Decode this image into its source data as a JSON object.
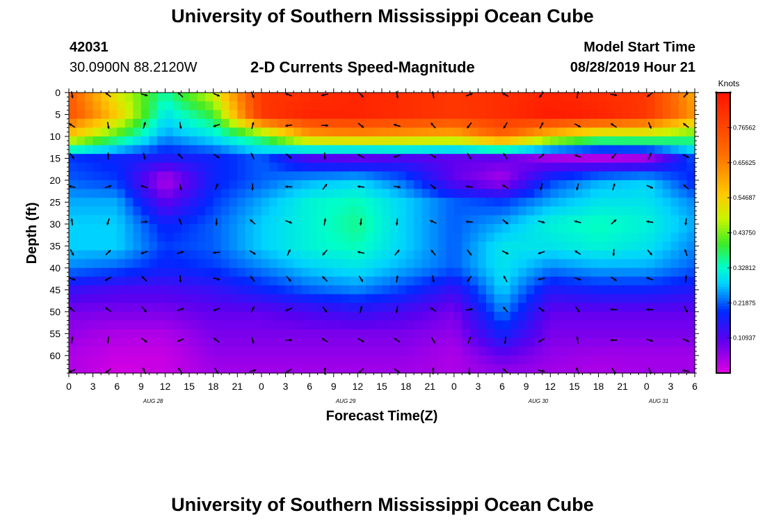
{
  "page": {
    "title": "University of Southern Mississippi Ocean Cube",
    "footer_title": "University of Southern Mississippi Ocean Cube",
    "station_id": "42031",
    "location": "30.0900N 88.2120W",
    "model_start_label": "Model Start Time",
    "model_start_value": "08/28/2019 Hour 21"
  },
  "chart_data": {
    "type": "heatmap",
    "title": "2-D Currents Speed-Magnitude",
    "xlabel": "Forecast Time(Z)",
    "ylabel": "Depth (ft)",
    "colorbar_label": "Knots",
    "colorbar_ticks": [
      "0.76562",
      "0.65625",
      "0.54687",
      "0.43750",
      "0.32812",
      "0.21875",
      "0.10937"
    ],
    "colorbar_range": [
      0,
      0.875
    ],
    "x_ticks": [
      "0",
      "3",
      "6",
      "9",
      "12",
      "15",
      "18",
      "21",
      "0",
      "3",
      "6",
      "9",
      "12",
      "15",
      "18",
      "21",
      "0",
      "3",
      "6",
      "9",
      "12",
      "15",
      "18",
      "21",
      "0",
      "3",
      "6"
    ],
    "x_range_hours": [
      0,
      78
    ],
    "date_labels": [
      {
        "label": "AUG 28",
        "hour": 10.5
      },
      {
        "label": "AUG 29",
        "hour": 34.5
      },
      {
        "label": "AUG 30",
        "hour": 58.5
      },
      {
        "label": "AUG 31",
        "hour": 73.5
      }
    ],
    "y_ticks": [
      0,
      5,
      10,
      15,
      20,
      25,
      30,
      35,
      40,
      45,
      50,
      55,
      60
    ],
    "y_range": [
      0,
      64
    ],
    "y_inverted": true,
    "speed_grid": {
      "hours": [
        0,
        6,
        12,
        18,
        24,
        30,
        36,
        42,
        48,
        54,
        60,
        66,
        72,
        78
      ],
      "depths": [
        0,
        5,
        10,
        15,
        20,
        25,
        30,
        35,
        40,
        45,
        50,
        55,
        60,
        64
      ],
      "values": [
        [
          0.72,
          0.5,
          0.35,
          0.5,
          0.8,
          0.82,
          0.84,
          0.82,
          0.8,
          0.82,
          0.84,
          0.82,
          0.8,
          0.6
        ],
        [
          0.74,
          0.55,
          0.3,
          0.4,
          0.8,
          0.84,
          0.84,
          0.82,
          0.8,
          0.82,
          0.86,
          0.84,
          0.8,
          0.62
        ],
        [
          0.55,
          0.4,
          0.25,
          0.3,
          0.4,
          0.6,
          0.62,
          0.6,
          0.58,
          0.7,
          0.55,
          0.45,
          0.45,
          0.4
        ],
        [
          0.2,
          0.18,
          0.16,
          0.18,
          0.22,
          0.12,
          0.1,
          0.12,
          0.1,
          0.1,
          0.05,
          0.04,
          0.05,
          0.22
        ],
        [
          0.22,
          0.2,
          0.03,
          0.18,
          0.22,
          0.26,
          0.28,
          0.22,
          0.1,
          0.04,
          0.2,
          0.26,
          0.28,
          0.18
        ],
        [
          0.26,
          0.26,
          0.1,
          0.2,
          0.26,
          0.32,
          0.34,
          0.28,
          0.22,
          0.2,
          0.26,
          0.3,
          0.3,
          0.24
        ],
        [
          0.28,
          0.28,
          0.18,
          0.22,
          0.28,
          0.32,
          0.36,
          0.28,
          0.22,
          0.26,
          0.32,
          0.34,
          0.32,
          0.26
        ],
        [
          0.28,
          0.28,
          0.2,
          0.22,
          0.28,
          0.32,
          0.34,
          0.28,
          0.22,
          0.3,
          0.3,
          0.32,
          0.3,
          0.24
        ],
        [
          0.24,
          0.22,
          0.18,
          0.2,
          0.24,
          0.28,
          0.3,
          0.26,
          0.22,
          0.3,
          0.24,
          0.26,
          0.26,
          0.22
        ],
        [
          0.14,
          0.12,
          0.12,
          0.14,
          0.18,
          0.22,
          0.24,
          0.2,
          0.14,
          0.28,
          0.16,
          0.18,
          0.18,
          0.16
        ],
        [
          0.08,
          0.08,
          0.08,
          0.1,
          0.1,
          0.12,
          0.14,
          0.12,
          0.08,
          0.24,
          0.1,
          0.1,
          0.1,
          0.1
        ],
        [
          0.06,
          0.04,
          0.04,
          0.08,
          0.08,
          0.08,
          0.08,
          0.08,
          0.06,
          0.18,
          0.08,
          0.08,
          0.08,
          0.08
        ],
        [
          0.04,
          0.02,
          0.02,
          0.06,
          0.06,
          0.06,
          0.06,
          0.06,
          0.04,
          0.1,
          0.06,
          0.05,
          0.05,
          0.05
        ],
        [
          0.04,
          0.01,
          0.02,
          0.05,
          0.05,
          0.05,
          0.05,
          0.05,
          0.04,
          0.06,
          0.05,
          0.04,
          0.05,
          0.05
        ]
      ]
    }
  }
}
